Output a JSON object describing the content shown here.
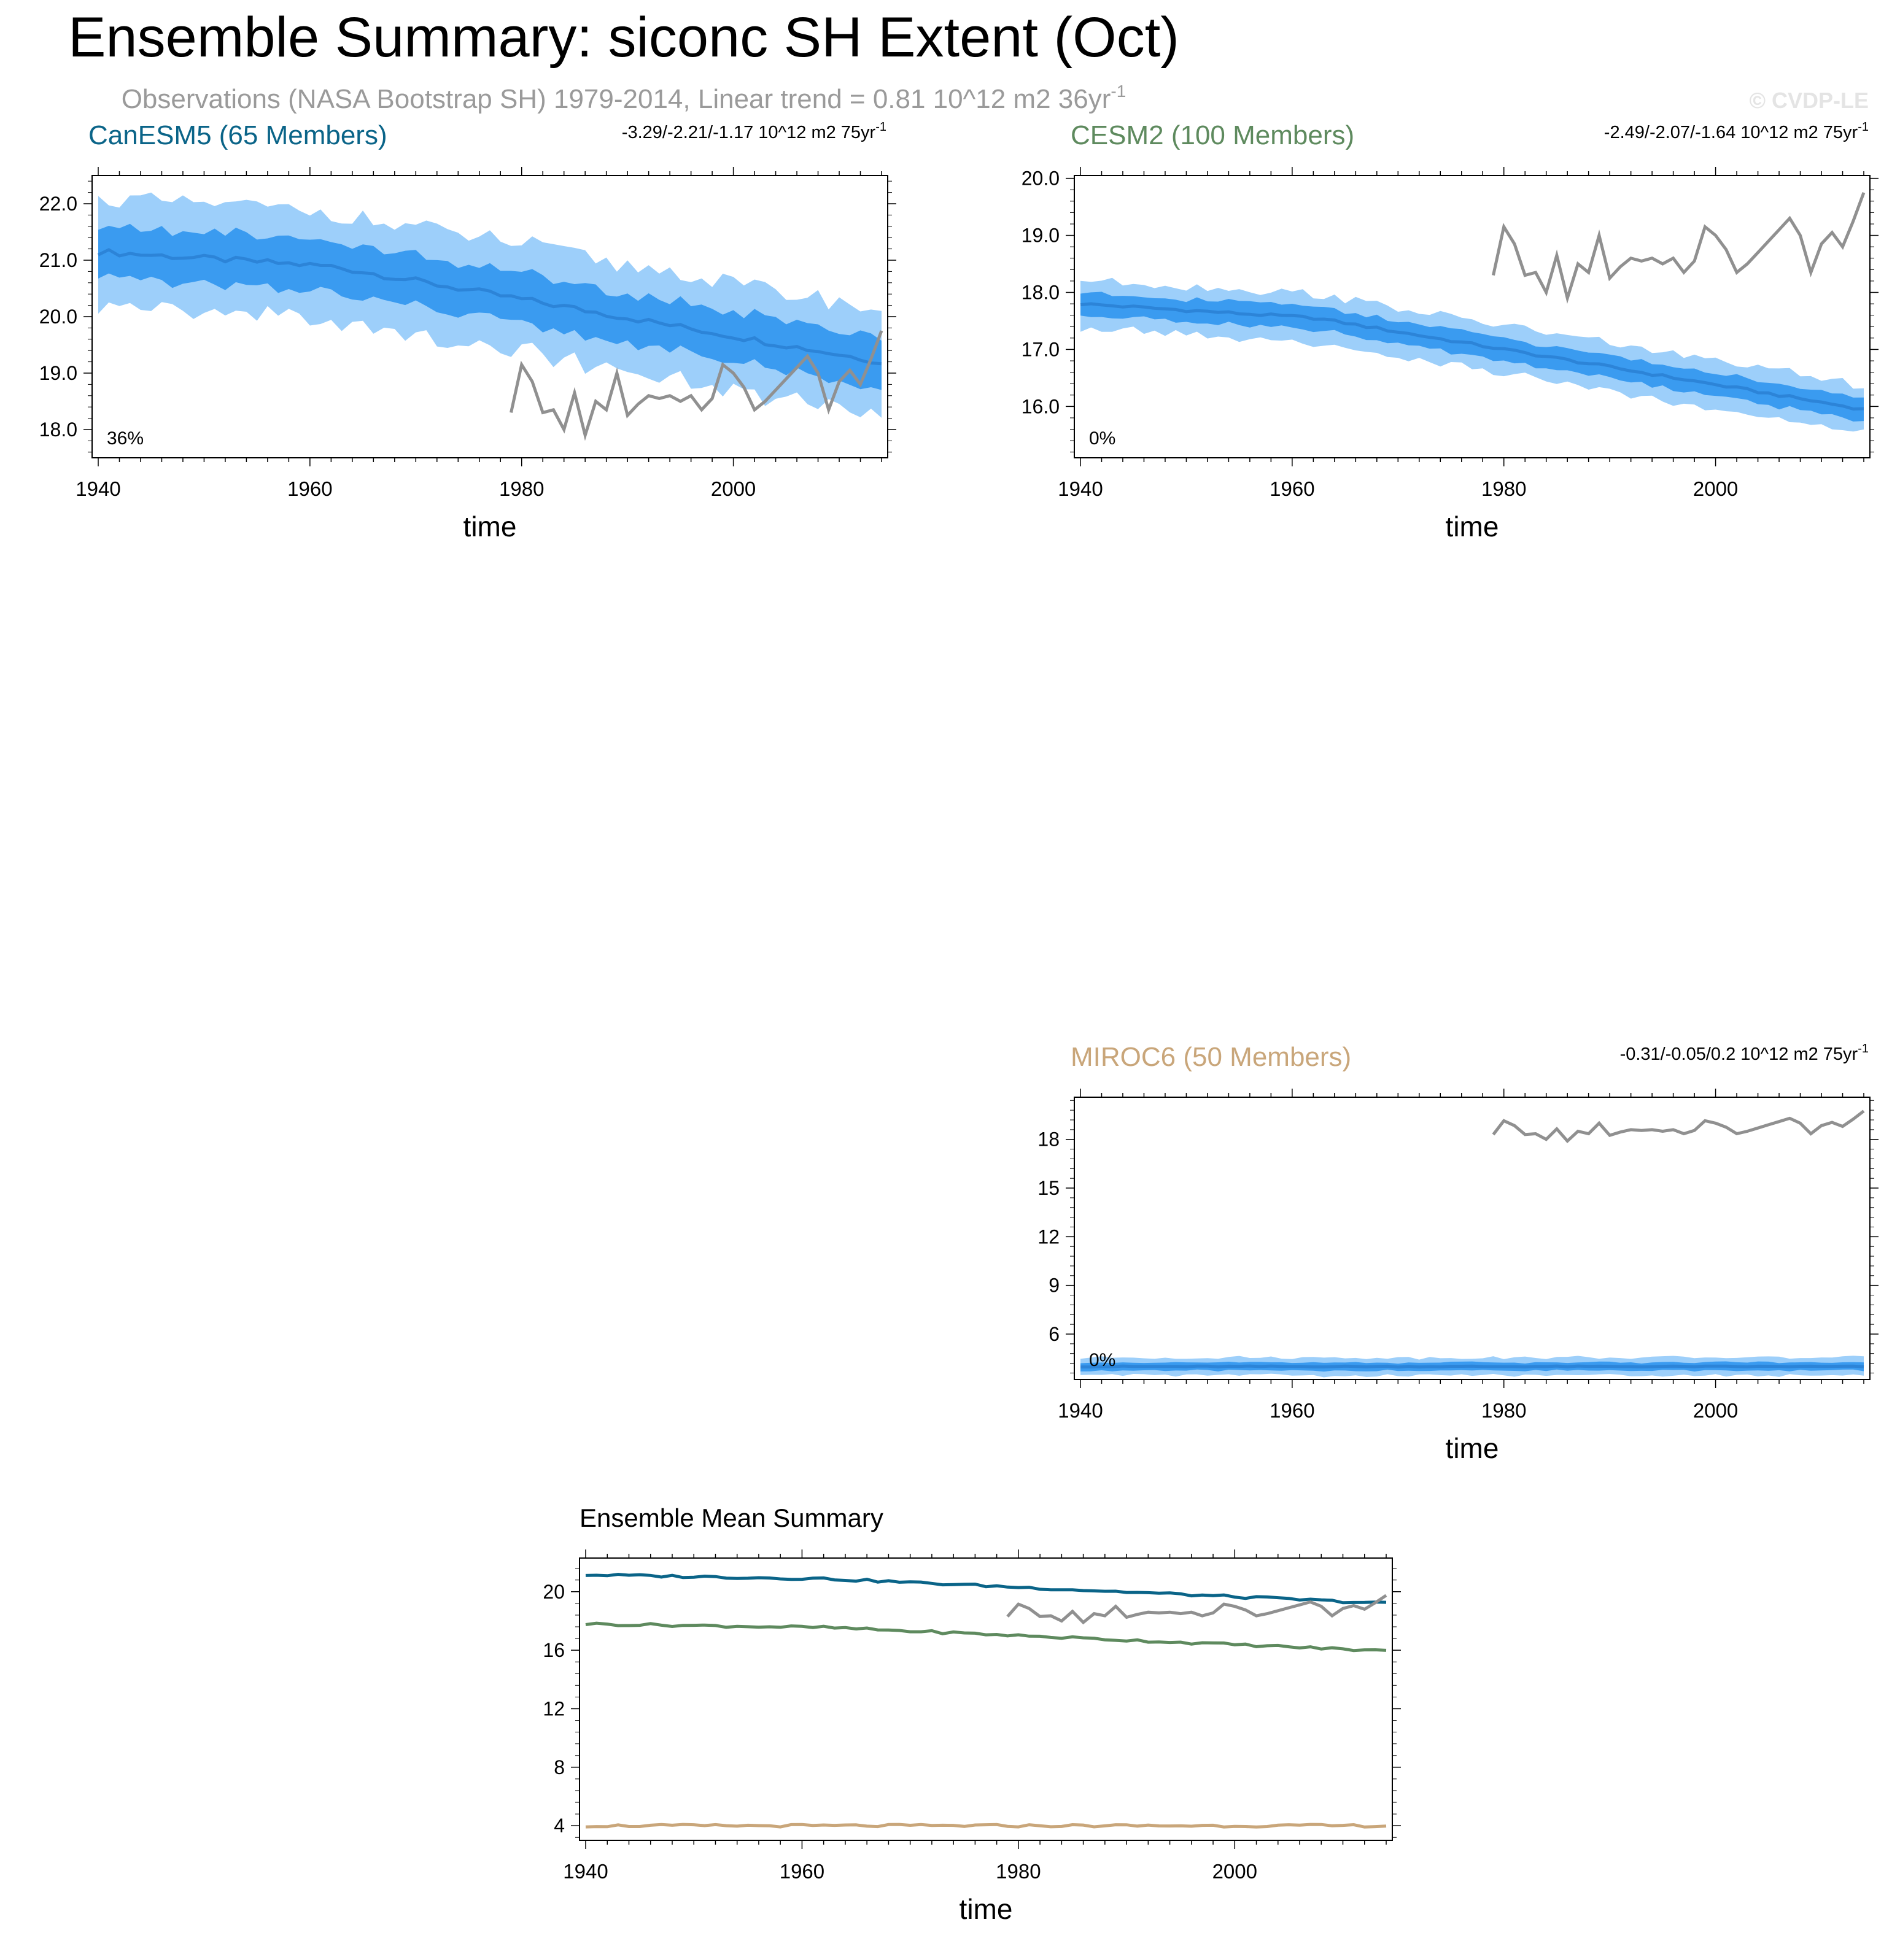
{
  "header": {
    "title": "Ensemble Summary: siconc SH Extent (Oct)",
    "subtitle": "Observations (NASA Bootstrap SH) 1979-2014, Linear trend = 0.81 10^12 m2 36yr",
    "subtitle_exp": "-1",
    "watermark": "© CVDP-LE"
  },
  "colors": {
    "outer_band": "#9dcffa",
    "inner_band": "#3a9bf0",
    "mean_line": "#2c84d8",
    "obs": "#909090",
    "canesm5": "#0a6488",
    "cesm2": "#5e8a5e",
    "miroc6": "#c9a67a",
    "axis": "#000000"
  },
  "chart_data": [
    {
      "id": "canesm5",
      "type": "area",
      "title": "CanESM5 (65 Members)",
      "title_color": "#0a6488",
      "trend": "-3.29/-2.21/-1.17 10^12 m2 75yr",
      "trend_exp": "-1",
      "pct": "36%",
      "xlabel": "time",
      "xlim": [
        1940,
        2014
      ],
      "ylim": [
        17.5,
        22.5
      ],
      "xticks": [
        "1940",
        "1960",
        "1980",
        "2000"
      ],
      "yticks": [
        "18.0",
        "19.0",
        "20.0",
        "21.0",
        "22.0"
      ],
      "ytick_values": [
        18,
        19,
        20,
        21,
        22
      ],
      "mean_start": 21.15,
      "mean_end": 19.2,
      "inner_half": 0.45,
      "outer_half": 0.95,
      "obs_years": [
        1979,
        1980,
        1981,
        1982,
        1983,
        1984,
        1985,
        1986,
        1987,
        1988,
        1989,
        1990,
        1991,
        1992,
        1993,
        1994,
        1995,
        1996,
        1997,
        1998,
        1999,
        2000,
        2001,
        2002,
        2003,
        2004,
        2005,
        2006,
        2007,
        2008,
        2009,
        2010,
        2011,
        2012,
        2013,
        2014
      ],
      "obs_values": [
        18.3,
        19.15,
        18.85,
        18.3,
        18.35,
        18.0,
        18.65,
        17.9,
        18.5,
        18.35,
        19.0,
        18.25,
        18.45,
        18.6,
        18.55,
        18.6,
        18.5,
        18.6,
        18.35,
        18.55,
        19.15,
        19.0,
        18.75,
        18.35,
        18.5,
        18.7,
        18.9,
        19.1,
        19.3,
        19.0,
        18.35,
        18.85,
        19.05,
        18.8,
        19.25,
        19.75
      ]
    },
    {
      "id": "cesm2",
      "type": "area",
      "title": "CESM2 (100 Members)",
      "title_color": "#5e8a5e",
      "trend": "-2.49/-2.07/-1.64 10^12 m2 75yr",
      "trend_exp": "-1",
      "pct": "0%",
      "xlabel": "time",
      "xlim": [
        1940,
        2014
      ],
      "ylim": [
        15.1,
        20.05
      ],
      "xticks": [
        "1940",
        "1960",
        "1980",
        "2000"
      ],
      "yticks": [
        "16.0",
        "17.0",
        "18.0",
        "19.0",
        "20.0"
      ],
      "ytick_values": [
        16,
        17,
        18,
        19,
        20
      ],
      "mean_start": 17.8,
      "mean_end": 15.95,
      "inner_half": 0.2,
      "outer_half": 0.42,
      "obs_years": [
        1979,
        1980,
        1981,
        1982,
        1983,
        1984,
        1985,
        1986,
        1987,
        1988,
        1989,
        1990,
        1991,
        1992,
        1993,
        1994,
        1995,
        1996,
        1997,
        1998,
        1999,
        2000,
        2001,
        2002,
        2003,
        2004,
        2005,
        2006,
        2007,
        2008,
        2009,
        2010,
        2011,
        2012,
        2013,
        2014
      ],
      "obs_values": [
        18.3,
        19.15,
        18.85,
        18.3,
        18.35,
        18.0,
        18.65,
        17.9,
        18.5,
        18.35,
        19.0,
        18.25,
        18.45,
        18.6,
        18.55,
        18.6,
        18.5,
        18.6,
        18.35,
        18.55,
        19.15,
        19.0,
        18.75,
        18.35,
        18.5,
        18.7,
        18.9,
        19.1,
        19.3,
        19.0,
        18.35,
        18.85,
        19.05,
        18.8,
        19.25,
        19.75
      ]
    },
    {
      "id": "miroc6",
      "type": "area",
      "title": "MIROC6 (50 Members)",
      "title_color": "#c9a67a",
      "trend": "-0.31/-0.05/0.2 10^12 m2 75yr",
      "trend_exp": "-1",
      "pct": "0%",
      "xlabel": "time",
      "xlim": [
        1940,
        2014
      ],
      "ylim": [
        3.2,
        20.6
      ],
      "xticks": [
        "1940",
        "1960",
        "1980",
        "2000"
      ],
      "yticks": [
        "6",
        "9",
        "12",
        "15",
        "18"
      ],
      "ytick_values": [
        6,
        9,
        12,
        15,
        18
      ],
      "mean_start": 4.0,
      "mean_end": 4.0,
      "inner_half": 0.25,
      "outer_half": 0.55,
      "obs_years": [
        1979,
        1980,
        1981,
        1982,
        1983,
        1984,
        1985,
        1986,
        1987,
        1988,
        1989,
        1990,
        1991,
        1992,
        1993,
        1994,
        1995,
        1996,
        1997,
        1998,
        1999,
        2000,
        2001,
        2002,
        2003,
        2004,
        2005,
        2006,
        2007,
        2008,
        2009,
        2010,
        2011,
        2012,
        2013,
        2014
      ],
      "obs_values": [
        18.3,
        19.15,
        18.85,
        18.3,
        18.35,
        18.0,
        18.65,
        17.9,
        18.5,
        18.35,
        19.0,
        18.25,
        18.45,
        18.6,
        18.55,
        18.6,
        18.5,
        18.6,
        18.35,
        18.55,
        19.15,
        19.0,
        18.75,
        18.35,
        18.5,
        18.7,
        18.9,
        19.1,
        19.3,
        19.0,
        18.35,
        18.85,
        19.05,
        18.8,
        19.25,
        19.75
      ]
    },
    {
      "id": "mean-summary",
      "type": "line",
      "title": "Ensemble Mean Summary",
      "xlabel": "time",
      "xlim": [
        1940,
        2014
      ],
      "ylim": [
        3.0,
        22.3
      ],
      "xticks": [
        "1940",
        "1960",
        "1980",
        "2000"
      ],
      "yticks": [
        "4",
        "8",
        "12",
        "16",
        "20"
      ],
      "ytick_values": [
        4,
        8,
        12,
        16,
        20
      ],
      "series": [
        {
          "name": "CanESM5",
          "color": "#0a6488",
          "start": 21.15,
          "end": 19.2
        },
        {
          "name": "CESM2",
          "color": "#5e8a5e",
          "start": 17.8,
          "end": 15.95
        },
        {
          "name": "MIROC6",
          "color": "#c9a67a",
          "start": 4.0,
          "end": 4.0
        },
        {
          "name": "Observations",
          "color": "#909090",
          "obs": true
        }
      ],
      "obs_years": [
        1979,
        1980,
        1981,
        1982,
        1983,
        1984,
        1985,
        1986,
        1987,
        1988,
        1989,
        1990,
        1991,
        1992,
        1993,
        1994,
        1995,
        1996,
        1997,
        1998,
        1999,
        2000,
        2001,
        2002,
        2003,
        2004,
        2005,
        2006,
        2007,
        2008,
        2009,
        2010,
        2011,
        2012,
        2013,
        2014
      ],
      "obs_values": [
        18.3,
        19.15,
        18.85,
        18.3,
        18.35,
        18.0,
        18.65,
        17.9,
        18.5,
        18.35,
        19.0,
        18.25,
        18.45,
        18.6,
        18.55,
        18.6,
        18.5,
        18.6,
        18.35,
        18.55,
        19.15,
        19.0,
        18.75,
        18.35,
        18.5,
        18.7,
        18.9,
        19.1,
        19.3,
        19.0,
        18.35,
        18.85,
        19.05,
        18.8,
        19.25,
        19.75
      ]
    }
  ]
}
